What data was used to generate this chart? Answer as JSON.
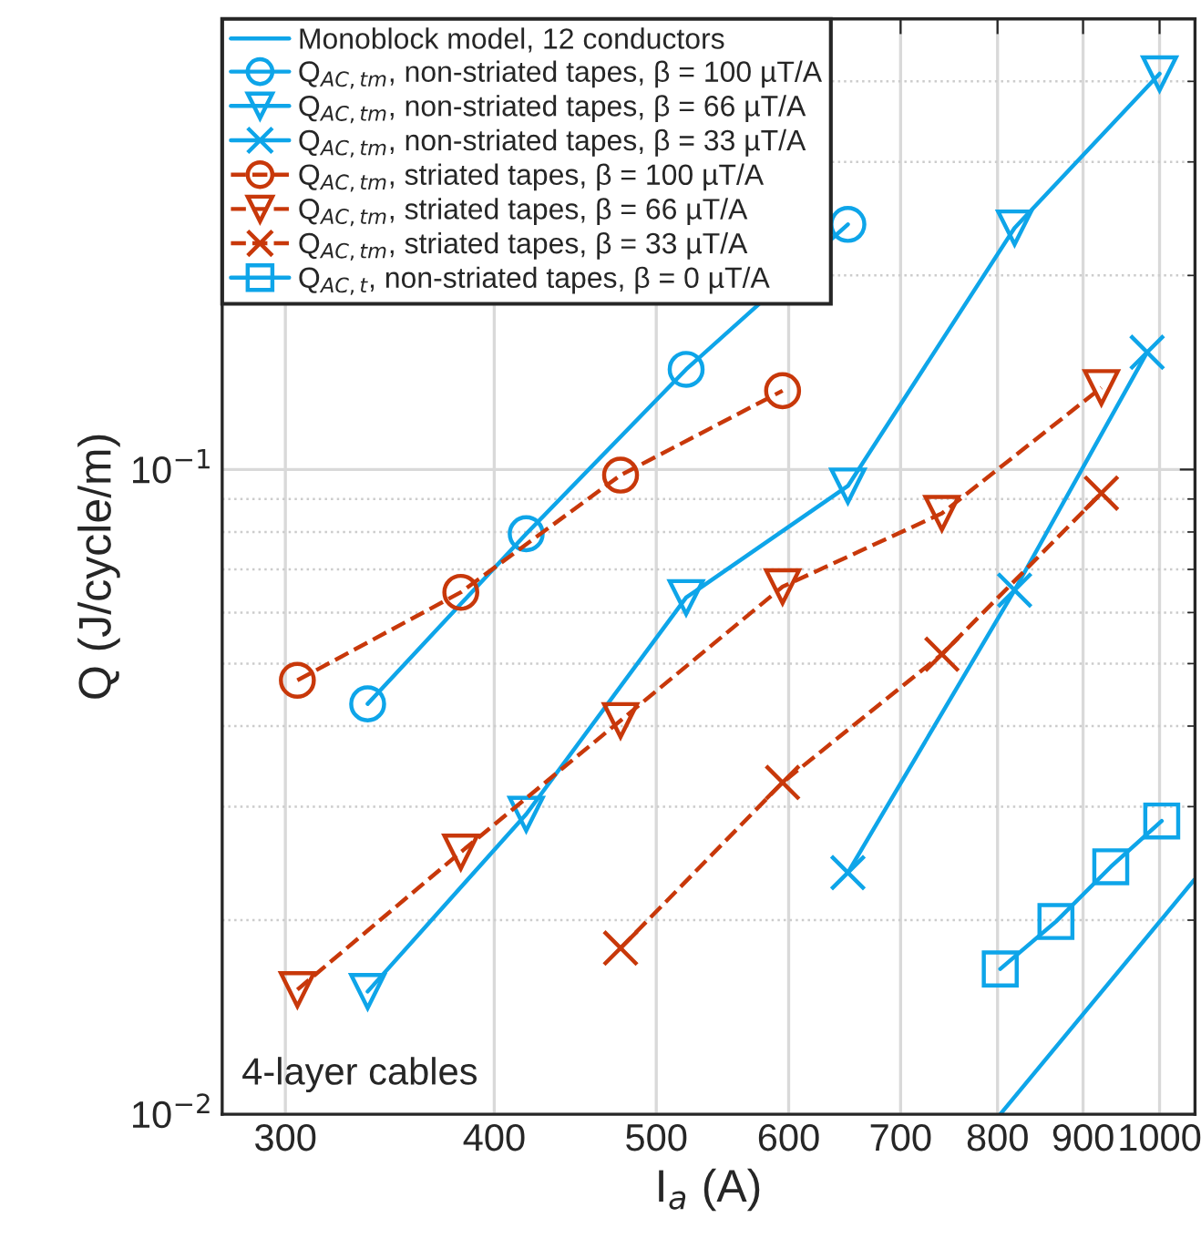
{
  "chart_data": {
    "type": "line",
    "xlabel": "I$_{a}$ (A)",
    "ylabel": "Q (J/cycle/m)",
    "log": "xy",
    "grid": true,
    "legend": "top left",
    "xlim": [
      275,
      1050
    ],
    "ylim": [
      0.01,
      0.5
    ],
    "xticks": [
      300,
      400,
      500,
      600,
      700,
      800,
      900,
      1000
    ],
    "yticks": [
      {
        "value": 0.01,
        "label": "10$^{−2}$"
      },
      {
        "value": 0.1,
        "label": "10$^{−1}$"
      }
    ],
    "annotations": [
      "4-layer cables"
    ],
    "series": [
      {
        "name": "Monoblock model, 12 conductors",
        "color": "#0ea5e9",
        "marker": "none",
        "line_style": "solid",
        "x": [
          803,
          1049
        ],
        "values": [
          0.01,
          0.0231
        ]
      },
      {
        "name": "Q$_{AC,tm}$, non-striated tapes, β = 100 µT/A",
        "color": "#0ea5e9",
        "marker": "circle",
        "line_style": "solid",
        "x": [
          336,
          418,
          521,
          651
        ],
        "values": [
          0.0433,
          0.0795,
          0.143,
          0.24
        ]
      },
      {
        "name": "Q$_{AC,tm}$, non-striated tapes, β = 66 µT/A",
        "color": "#0ea5e9",
        "marker": "triangle",
        "line_style": "solid",
        "x": [
          336,
          418,
          521,
          651,
          819,
          1000
        ],
        "values": [
          0.0155,
          0.0292,
          0.0633,
          0.0943,
          0.237,
          0.411
        ]
      },
      {
        "name": "Q$_{AC,tm}$, non-striated tapes, β = 33 µT/A",
        "color": "#0ea5e9",
        "marker": "cross",
        "line_style": "solid",
        "x": [
          651,
          819,
          983
        ],
        "values": [
          0.0237,
          0.065,
          0.152
        ]
      },
      {
        "name": "Q$_{AC,tm}$, striated tapes, β = 100 µT/A",
        "color": "#c8380a",
        "marker": "circle",
        "line_style": "dashed",
        "x": [
          305,
          382,
          476,
          595
        ],
        "values": [
          0.0471,
          0.0645,
          0.098,
          0.1325
        ]
      },
      {
        "name": "Q$_{AC,tm}$, striated tapes, β = 66 µT/A",
        "color": "#c8380a",
        "marker": "triangle",
        "line_style": "dashed",
        "x": [
          305,
          382,
          476,
          595,
          741,
          923
        ],
        "values": [
          0.0156,
          0.0255,
          0.0408,
          0.0658,
          0.0855,
          0.134
        ]
      },
      {
        "name": "Q$_{AC,tm}$, striated tapes, β = 33 µT/A",
        "color": "#c8380a",
        "marker": "cross",
        "line_style": "dashed",
        "x": [
          476,
          595,
          741,
          923
        ],
        "values": [
          0.0181,
          0.0327,
          0.0517,
          0.0919
        ]
      },
      {
        "name": "Q$_{AC,t}$, non-striated tapes, β = 0 µT/A",
        "color": "#0ea5e9",
        "marker": "square",
        "line_style": "solid",
        "x": [
          803,
          867,
          935,
          1003
        ],
        "values": [
          0.0168,
          0.0199,
          0.0242,
          0.0285
        ]
      }
    ]
  }
}
